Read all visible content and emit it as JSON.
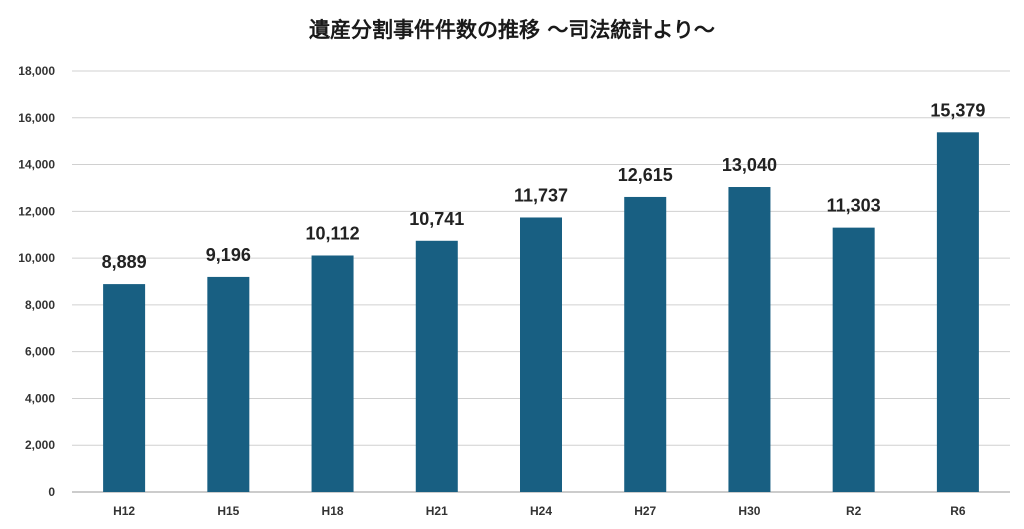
{
  "chart_data": {
    "type": "bar",
    "title": "遺産分割事件件数の推移 〜司法統計より〜",
    "categories": [
      "H12",
      "H15",
      "H18",
      "H21",
      "H24",
      "H27",
      "H30",
      "R2",
      "R6"
    ],
    "values": [
      8889,
      9196,
      10112,
      10741,
      11737,
      12615,
      13040,
      11303,
      15379
    ],
    "data_labels": [
      "8,889",
      "9,196",
      "10,112",
      "10,741",
      "11,737",
      "12,615",
      "13,040",
      "11,303",
      "15,379"
    ],
    "y_ticks": [
      "0",
      "2,000",
      "4,000",
      "6,000",
      "8,000",
      "10,000",
      "12,000",
      "14,000",
      "16,000",
      "18,000"
    ],
    "ylim": [
      0,
      18000
    ],
    "grid": true,
    "bar_color": "#185f82"
  }
}
